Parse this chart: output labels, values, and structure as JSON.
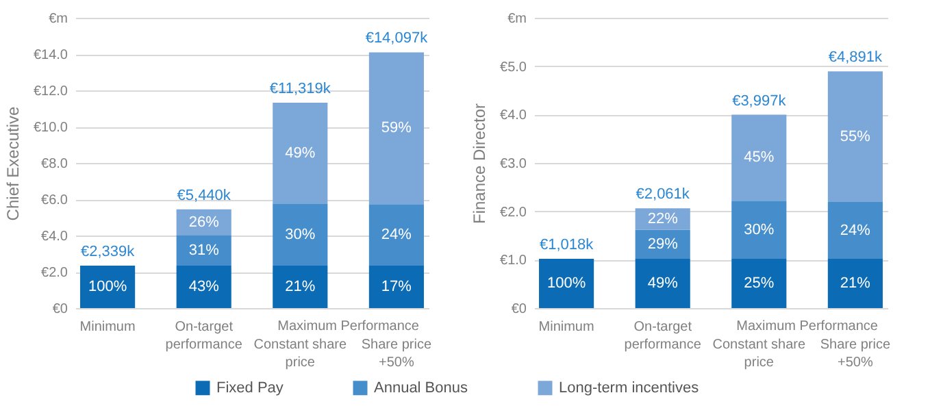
{
  "chart_data": [
    {
      "type": "bar",
      "stacked": true,
      "ylabel": "Chief Executive",
      "categories": [
        "Minimum",
        "On-target performance",
        "Constant share price",
        "Share price +50%"
      ],
      "series": [
        {
          "name": "Fixed Pay",
          "color": "#0b6bb5",
          "values": [
            2.339,
            2.339,
            2.339,
            2.339
          ]
        },
        {
          "name": "Annual Bonus",
          "color": "#458dcb",
          "values": [
            null,
            1.686,
            3.396,
            3.383
          ]
        },
        {
          "name": "Long-term incentives",
          "color": "#7ca7d9",
          "values": [
            null,
            1.415,
            5.584,
            8.375
          ]
        }
      ],
      "totals": [
        "€2,339k",
        "€5,440k",
        "€11,319k",
        "€14,097k"
      ],
      "ylim": [
        0,
        16
      ],
      "yticks": [
        {
          "value": 0,
          "label": "€0"
        },
        {
          "value": 2,
          "label": "€2.0"
        },
        {
          "value": 4,
          "label": "€4.0"
        },
        {
          "value": 6,
          "label": "€6.0"
        },
        {
          "value": 8,
          "label": "€8.0"
        },
        {
          "value": 10,
          "label": "€10.0"
        },
        {
          "value": 12,
          "label": "€12.0"
        },
        {
          "value": 14,
          "label": "€14.0"
        },
        {
          "value": 16,
          "label": "€m"
        }
      ],
      "grid": "y",
      "legend": "bottom",
      "annotations": [
        "Maximum Performance",
        "100%",
        "43%",
        "21%",
        "17%",
        "31%",
        "30%",
        "24%",
        "26%",
        "49%",
        "59%"
      ]
    },
    {
      "type": "bar",
      "stacked": true,
      "ylabel": "Finance Director",
      "categories": [
        "Minimum",
        "On-target performance",
        "Constant share price",
        "Share price +50%"
      ],
      "series": [
        {
          "name": "Fixed Pay",
          "color": "#0b6bb5",
          "values": [
            1.018,
            1.018,
            1.018,
            1.018
          ]
        },
        {
          "name": "Annual Bonus",
          "color": "#458dcb",
          "values": [
            null,
            0.598,
            1.199,
            1.174
          ]
        },
        {
          "name": "Long-term incentives",
          "color": "#7ca7d9",
          "values": [
            null,
            0.445,
            1.78,
            2.699
          ]
        }
      ],
      "totals": [
        "€1,018k",
        "€2,061k",
        "€3,997k",
        "€4,891k"
      ],
      "ylim": [
        0,
        6
      ],
      "yticks": [
        {
          "value": 0,
          "label": "€0"
        },
        {
          "value": 1,
          "label": "€1.0"
        },
        {
          "value": 2,
          "label": "€2.0"
        },
        {
          "value": 3,
          "label": "€3.0"
        },
        {
          "value": 4,
          "label": "€4.0"
        },
        {
          "value": 5,
          "label": "€5.0"
        },
        {
          "value": 6,
          "label": "€m"
        }
      ],
      "grid": "y",
      "legend": "bottom",
      "annotations": [
        "Maximum Performance",
        "100%",
        "49%",
        "25%",
        "21%",
        "29%",
        "30%",
        "24%",
        "22%",
        "45%",
        "55%"
      ]
    }
  ]
}
